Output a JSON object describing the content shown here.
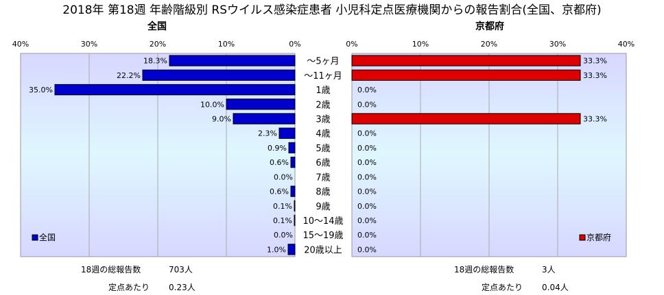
{
  "title": "2018年 第18週 年齢階級別 RSウイルス感染症患者 小児科定点医療機関からの報告割合(全国、京都府)",
  "colors": {
    "national": "#0000cc",
    "kyoto": "#dd0000",
    "plot_bg_top": "#d7d7ff",
    "plot_bg_mid": "#dff7ff"
  },
  "chart_data": [
    {
      "type": "bar",
      "title": "全国",
      "orientation": "horizontal",
      "direction": "right-to-left",
      "categories": [
        "〜5ヶ月",
        "〜11ヶ月",
        "1歳",
        "2歳",
        "3歳",
        "4歳",
        "5歳",
        "6歳",
        "7歳",
        "8歳",
        "9歳",
        "10〜14歳",
        "15〜19歳",
        "20歳以上"
      ],
      "series": [
        {
          "name": "全国",
          "values": [
            18.3,
            22.2,
            35.0,
            10.0,
            9.0,
            2.3,
            0.9,
            0.6,
            0.0,
            0.6,
            0.1,
            0.1,
            0.0,
            1.0
          ],
          "labels": [
            "18.3%",
            "22.2%",
            "35.0%",
            "10.0%",
            "9.0%",
            "2.3%",
            "0.9%",
            "0.6%",
            "0.0%",
            "0.6%",
            "0.1%",
            "0.1%",
            "0.0%",
            "1.0%"
          ]
        }
      ],
      "xlim": [
        0,
        40
      ],
      "xticks": [
        "40%",
        "30%",
        "20%",
        "10%",
        "0%"
      ],
      "grid": true,
      "legend_position": "bottom-left"
    },
    {
      "type": "bar",
      "title": "京都府",
      "orientation": "horizontal",
      "direction": "left-to-right",
      "categories": [
        "〜5ヶ月",
        "〜11ヶ月",
        "1歳",
        "2歳",
        "3歳",
        "4歳",
        "5歳",
        "6歳",
        "7歳",
        "8歳",
        "9歳",
        "10〜14歳",
        "15〜19歳",
        "20歳以上"
      ],
      "series": [
        {
          "name": "京都府",
          "values": [
            33.3,
            33.3,
            0.0,
            0.0,
            33.3,
            0.0,
            0.0,
            0.0,
            0.0,
            0.0,
            0.0,
            0.0,
            0.0,
            0.0
          ],
          "labels": [
            "33.3%",
            "33.3%",
            "0.0%",
            "0.0%",
            "33.3%",
            "0.0%",
            "0.0%",
            "0.0%",
            "0.0%",
            "0.0%",
            "0.0%",
            "0.0%",
            "0.0%",
            "0.0%"
          ]
        }
      ],
      "xlim": [
        0,
        40
      ],
      "xticks": [
        "0%",
        "10%",
        "20%",
        "30%",
        "40%"
      ],
      "grid": true,
      "legend_position": "bottom-right"
    }
  ],
  "stats": {
    "national_total_label": "18週の総報告数",
    "national_total_value": "703人",
    "national_per_label": "定点あたり",
    "national_per_value": "0.23人",
    "kyoto_total_label": "18週の総報告数",
    "kyoto_total_value": "3人",
    "kyoto_per_label": "定点あたり",
    "kyoto_per_value": "0.04人"
  }
}
